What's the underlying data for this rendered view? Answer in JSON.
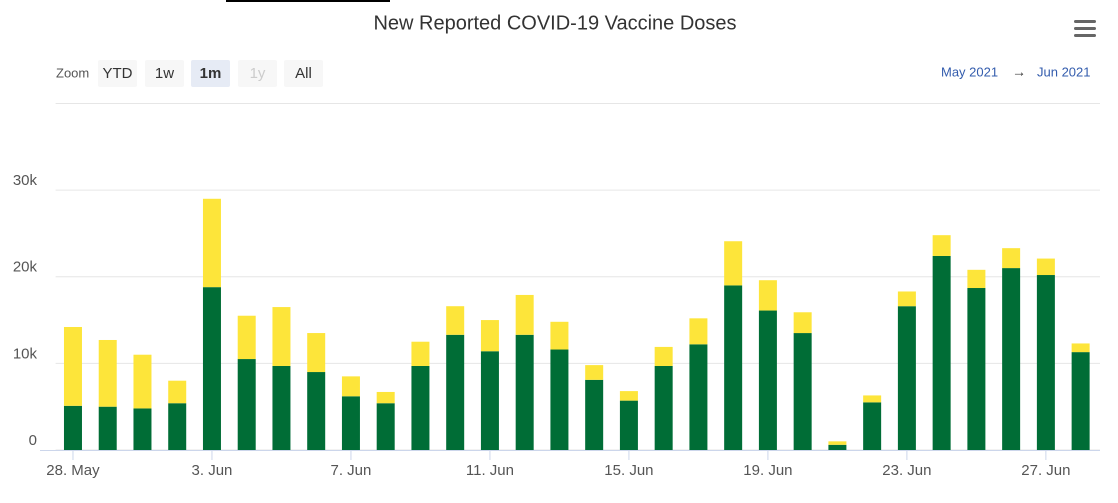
{
  "chart_data": {
    "type": "stacked_bar",
    "title": "New Reported COVID-19 Vaccine Doses",
    "categories": [
      "28. May",
      null,
      null,
      null,
      "3. Jun",
      null,
      null,
      null,
      "7. Jun",
      null,
      null,
      null,
      "11. Jun",
      null,
      null,
      null,
      "15. Jun",
      null,
      null,
      null,
      "19. Jun",
      null,
      null,
      null,
      "23. Jun",
      null,
      null,
      null,
      "27. Jun",
      null
    ],
    "series": [
      {
        "color": "#006d36",
        "values": [
          5100,
          5000,
          4800,
          5400,
          18800,
          10500,
          9700,
          9000,
          6200,
          5400,
          9700,
          13300,
          11400,
          13300,
          11600,
          8100,
          5700,
          9700,
          12200,
          19000,
          16100,
          13500,
          600,
          5500,
          16600,
          22400,
          18700,
          21000,
          20200,
          11300
        ]
      },
      {
        "color": "#fde53a",
        "values": [
          9100,
          7700,
          6200,
          2600,
          10200,
          5000,
          6800,
          4500,
          2300,
          1300,
          2800,
          3300,
          3600,
          4600,
          3200,
          1700,
          1100,
          2200,
          3000,
          5100,
          3500,
          2400,
          400,
          800,
          1700,
          2400,
          2100,
          2300,
          1900,
          1000
        ]
      }
    ],
    "ylim": [
      0,
      40000
    ],
    "yticks": [
      0,
      {
        "value": 10000,
        "label": "10k"
      },
      {
        "value": 20000,
        "label": "20k"
      },
      {
        "value": 30000,
        "label": "30k"
      },
      40000
    ],
    "grid": true
  },
  "range_selector": {
    "label": "Zoom",
    "buttons": [
      "YTD",
      "1w",
      "1m",
      "1y",
      "All"
    ],
    "selected": 2,
    "disabled": 3
  },
  "date_range": {
    "from": "May 2021",
    "arrow": "→",
    "to": "Jun 2021"
  }
}
